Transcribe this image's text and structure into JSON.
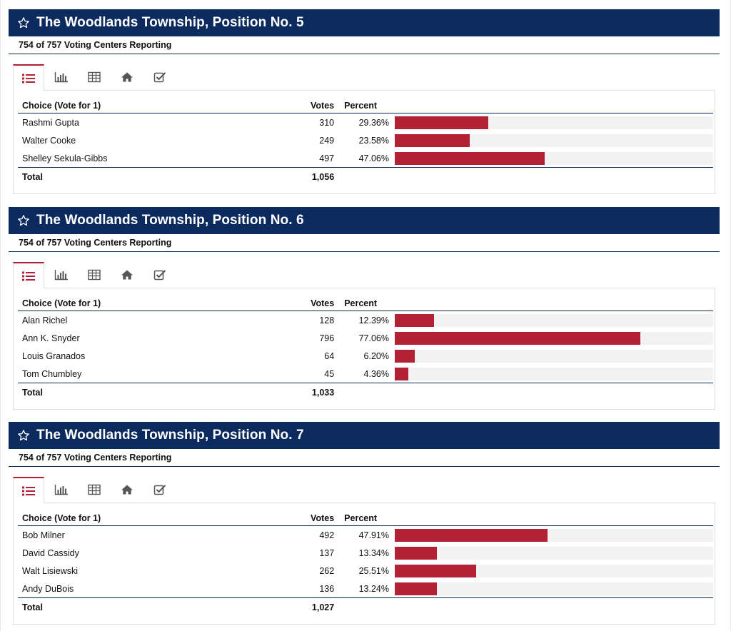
{
  "races": [
    {
      "title": "The Woodlands Township, Position No. 5",
      "reporting": "754 of 757 Voting Centers Reporting",
      "columns": {
        "choice": "Choice (Vote for 1)",
        "votes": "Votes",
        "percent": "Percent"
      },
      "rows": [
        {
          "name": "Rashmi Gupta",
          "votes": "310",
          "percent": "29.36%",
          "pct_value": 29.36
        },
        {
          "name": "Walter Cooke",
          "votes": "249",
          "percent": "23.58%",
          "pct_value": 23.58
        },
        {
          "name": "Shelley Sekula-Gibbs",
          "votes": "497",
          "percent": "47.06%",
          "pct_value": 47.06
        }
      ],
      "total_label": "Total",
      "total_votes": "1,056"
    },
    {
      "title": "The Woodlands Township, Position No. 6",
      "reporting": "754 of 757 Voting Centers Reporting",
      "columns": {
        "choice": "Choice (Vote for 1)",
        "votes": "Votes",
        "percent": "Percent"
      },
      "rows": [
        {
          "name": "Alan Richel",
          "votes": "128",
          "percent": "12.39%",
          "pct_value": 12.39
        },
        {
          "name": "Ann K. Snyder",
          "votes": "796",
          "percent": "77.06%",
          "pct_value": 77.06
        },
        {
          "name": "Louis Granados",
          "votes": "64",
          "percent": "6.20%",
          "pct_value": 6.2
        },
        {
          "name": "Tom Chumbley",
          "votes": "45",
          "percent": "4.36%",
          "pct_value": 4.36
        }
      ],
      "total_label": "Total",
      "total_votes": "1,033"
    },
    {
      "title": "The Woodlands Township, Position No. 7",
      "reporting": "754 of 757 Voting Centers Reporting",
      "columns": {
        "choice": "Choice (Vote for 1)",
        "votes": "Votes",
        "percent": "Percent"
      },
      "rows": [
        {
          "name": "Bob Milner",
          "votes": "492",
          "percent": "47.91%",
          "pct_value": 47.91
        },
        {
          "name": "David Cassidy",
          "votes": "137",
          "percent": "13.34%",
          "pct_value": 13.34
        },
        {
          "name": "Walt Lisiewski",
          "votes": "262",
          "percent": "25.51%",
          "pct_value": 25.51
        },
        {
          "name": "Andy DuBois",
          "votes": "136",
          "percent": "13.24%",
          "pct_value": 13.24
        }
      ],
      "total_label": "Total",
      "total_votes": "1,027"
    }
  ],
  "tabs": [
    {
      "icon": "list-icon",
      "active": true
    },
    {
      "icon": "bar-chart-icon",
      "active": false
    },
    {
      "icon": "table-icon",
      "active": false
    },
    {
      "icon": "home-icon",
      "active": false
    },
    {
      "icon": "checkbox-icon",
      "active": false
    }
  ],
  "colors": {
    "header_bg": "#0b2a5d",
    "accent": "#b22234",
    "bar_track": "#f2f2f2",
    "icon": "#555555"
  }
}
